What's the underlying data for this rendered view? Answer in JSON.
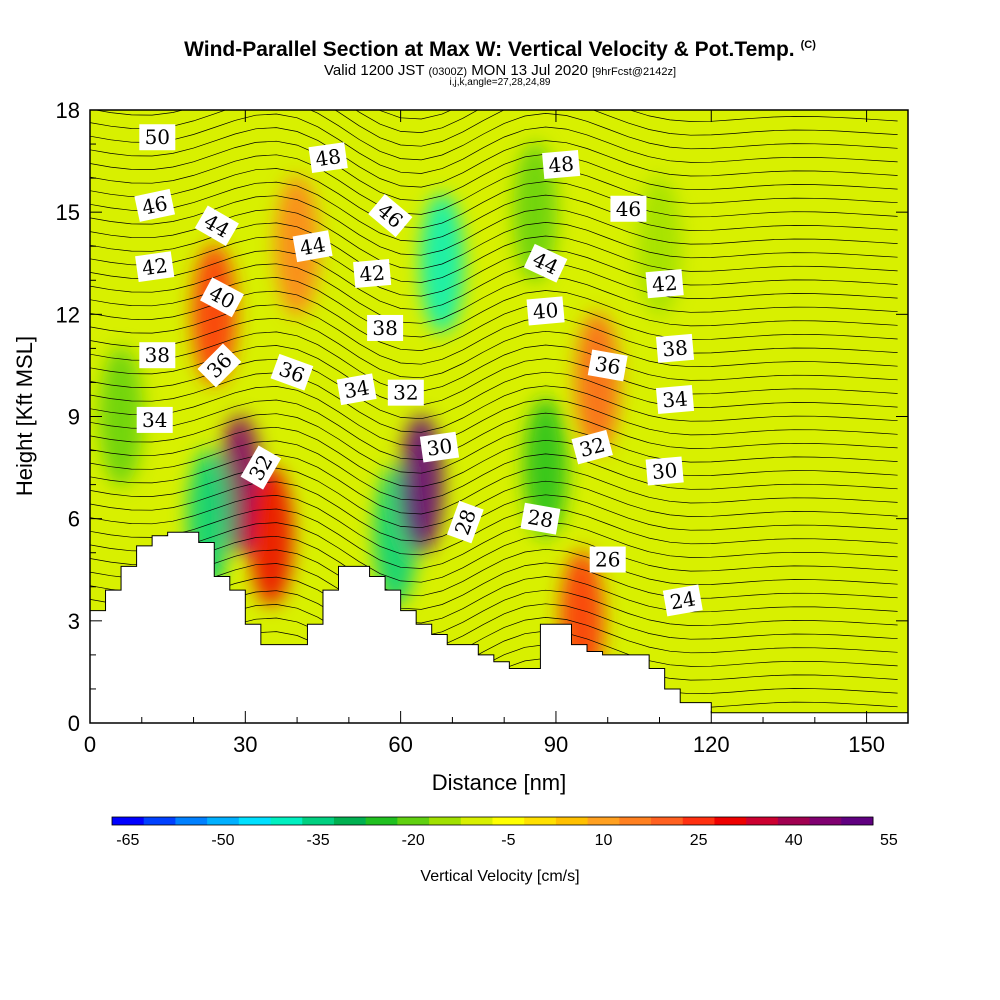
{
  "title": {
    "main": "Wind-Parallel Section at Max W: Vertical Velocity & Pot.Temp.",
    "copyright": "(C)",
    "valid_prefix": "Valid 1200 JST",
    "valid_utc": "(0300Z)",
    "valid_date": "MON 13 Jul 2020",
    "forecast": "[9hrFcst@2142z]",
    "indices": "i,j,k,angle=27,28,24,89"
  },
  "chart_data": {
    "type": "heatmap",
    "xlabel": "Distance [nm]",
    "ylabel": "Height [Kft MSL]",
    "xlim": [
      0,
      158
    ],
    "ylim": [
      0,
      18
    ],
    "x_ticks": [
      0,
      30,
      60,
      90,
      120,
      150
    ],
    "y_ticks": [
      0,
      3,
      6,
      9,
      12,
      15,
      18
    ],
    "colorbar": {
      "title": "Vertical Velocity [cm/s]",
      "tick_labels": [
        -65,
        -50,
        -35,
        -20,
        -5,
        10,
        25,
        40,
        55
      ],
      "colors": [
        "#0000ff",
        "#0040ff",
        "#0080ff",
        "#00b0ff",
        "#00e0ff",
        "#00f0c0",
        "#00d080",
        "#00b050",
        "#20c020",
        "#60d010",
        "#a0e000",
        "#d8f000",
        "#ffff00",
        "#ffe000",
        "#ffc000",
        "#ffa020",
        "#ff8020",
        "#ff6020",
        "#ff3010",
        "#ee0000",
        "#cc0030",
        "#a00050",
        "#800070",
        "#600080"
      ]
    },
    "terrain": [
      [
        0,
        3.3
      ],
      [
        3,
        3.9
      ],
      [
        6,
        4.6
      ],
      [
        9,
        5.2
      ],
      [
        12,
        5.5
      ],
      [
        15,
        5.6
      ],
      [
        18,
        5.6
      ],
      [
        21,
        5.3
      ],
      [
        24,
        4.3
      ],
      [
        27,
        3.9
      ],
      [
        30,
        2.9
      ],
      [
        33,
        2.3
      ],
      [
        36,
        2.3
      ],
      [
        39,
        2.3
      ],
      [
        42,
        2.9
      ],
      [
        45,
        3.9
      ],
      [
        48,
        4.6
      ],
      [
        51,
        4.6
      ],
      [
        54,
        4.3
      ],
      [
        57,
        3.9
      ],
      [
        60,
        3.3
      ],
      [
        63,
        2.9
      ],
      [
        66,
        2.6
      ],
      [
        69,
        2.3
      ],
      [
        72,
        2.3
      ],
      [
        75,
        2.0
      ],
      [
        78,
        1.8
      ],
      [
        81,
        1.6
      ],
      [
        84,
        1.6
      ],
      [
        87,
        2.9
      ],
      [
        90,
        2.9
      ],
      [
        93,
        2.3
      ],
      [
        96,
        2.1
      ],
      [
        99,
        2.0
      ],
      [
        102,
        2.0
      ],
      [
        105,
        2.0
      ],
      [
        108,
        1.6
      ],
      [
        111,
        1.0
      ],
      [
        114,
        0.6
      ],
      [
        117,
        0.6
      ],
      [
        120,
        0.3
      ],
      [
        130,
        0.3
      ],
      [
        140,
        0.3
      ],
      [
        158,
        0.3
      ]
    ],
    "velocity_features": [
      {
        "x": 6,
        "y": 9,
        "value": -20
      },
      {
        "x": 24,
        "y": 12,
        "value": 25
      },
      {
        "x": 29,
        "y": 7,
        "value": 45
      },
      {
        "x": 35,
        "y": 5.5,
        "value": 30
      },
      {
        "x": 23,
        "y": 6,
        "value": -35
      },
      {
        "x": 59,
        "y": 5.5,
        "value": -35
      },
      {
        "x": 64,
        "y": 7,
        "value": 60
      },
      {
        "x": 68,
        "y": 13.5,
        "value": -40
      },
      {
        "x": 88,
        "y": 7.5,
        "value": -25
      },
      {
        "x": 95,
        "y": 3,
        "value": 25
      },
      {
        "x": 98,
        "y": 10,
        "value": 20
      },
      {
        "x": 110,
        "y": 14,
        "value": -15
      },
      {
        "x": 86,
        "y": 15,
        "value": -20
      },
      {
        "x": 40,
        "y": 14,
        "value": 15
      }
    ],
    "isentrope_labels": [
      {
        "text": "50",
        "x": 13,
        "y": 17.2,
        "angle": 0
      },
      {
        "text": "48",
        "x": 46,
        "y": 16.6,
        "angle": -8
      },
      {
        "text": "48",
        "x": 91,
        "y": 16.4,
        "angle": -5
      },
      {
        "text": "46",
        "x": 12.5,
        "y": 15.2,
        "angle": -12
      },
      {
        "text": "44",
        "x": 24.5,
        "y": 14.6,
        "angle": 30
      },
      {
        "text": "46",
        "x": 58,
        "y": 14.9,
        "angle": 40
      },
      {
        "text": "46",
        "x": 104,
        "y": 15.1,
        "angle": 0
      },
      {
        "text": "44",
        "x": 43,
        "y": 14.0,
        "angle": -10
      },
      {
        "text": "44",
        "x": 88,
        "y": 13.5,
        "angle": 25
      },
      {
        "text": "42",
        "x": 12.5,
        "y": 13.4,
        "angle": -8
      },
      {
        "text": "42",
        "x": 54.5,
        "y": 13.2,
        "angle": -5
      },
      {
        "text": "42",
        "x": 111,
        "y": 12.9,
        "angle": -5
      },
      {
        "text": "40",
        "x": 25.5,
        "y": 12.5,
        "angle": 28
      },
      {
        "text": "40",
        "x": 88,
        "y": 12.1,
        "angle": -5
      },
      {
        "text": "38",
        "x": 57,
        "y": 11.6,
        "angle": 0
      },
      {
        "text": "38",
        "x": 13,
        "y": 10.8,
        "angle": 0
      },
      {
        "text": "38",
        "x": 113,
        "y": 11.0,
        "angle": -5
      },
      {
        "text": "36",
        "x": 25,
        "y": 10.5,
        "angle": -45
      },
      {
        "text": "36",
        "x": 39,
        "y": 10.3,
        "angle": 20
      },
      {
        "text": "36",
        "x": 100,
        "y": 10.5,
        "angle": 10
      },
      {
        "text": "34",
        "x": 51.5,
        "y": 9.8,
        "angle": -10
      },
      {
        "text": "34",
        "x": 113,
        "y": 9.5,
        "angle": -5
      },
      {
        "text": "32",
        "x": 61,
        "y": 9.7,
        "angle": 0
      },
      {
        "text": "34",
        "x": 12.5,
        "y": 8.9,
        "angle": 0
      },
      {
        "text": "32",
        "x": 97,
        "y": 8.1,
        "angle": -15
      },
      {
        "text": "30",
        "x": 67.5,
        "y": 8.1,
        "angle": -8
      },
      {
        "text": "32",
        "x": 33,
        "y": 7.5,
        "angle": -60
      },
      {
        "text": "30",
        "x": 111,
        "y": 7.4,
        "angle": -5
      },
      {
        "text": "28",
        "x": 72.5,
        "y": 5.9,
        "angle": -70
      },
      {
        "text": "28",
        "x": 87,
        "y": 6.0,
        "angle": 10
      },
      {
        "text": "26",
        "x": 100,
        "y": 4.8,
        "angle": 0
      },
      {
        "text": "24",
        "x": 114.5,
        "y": 3.6,
        "angle": -10
      }
    ]
  }
}
